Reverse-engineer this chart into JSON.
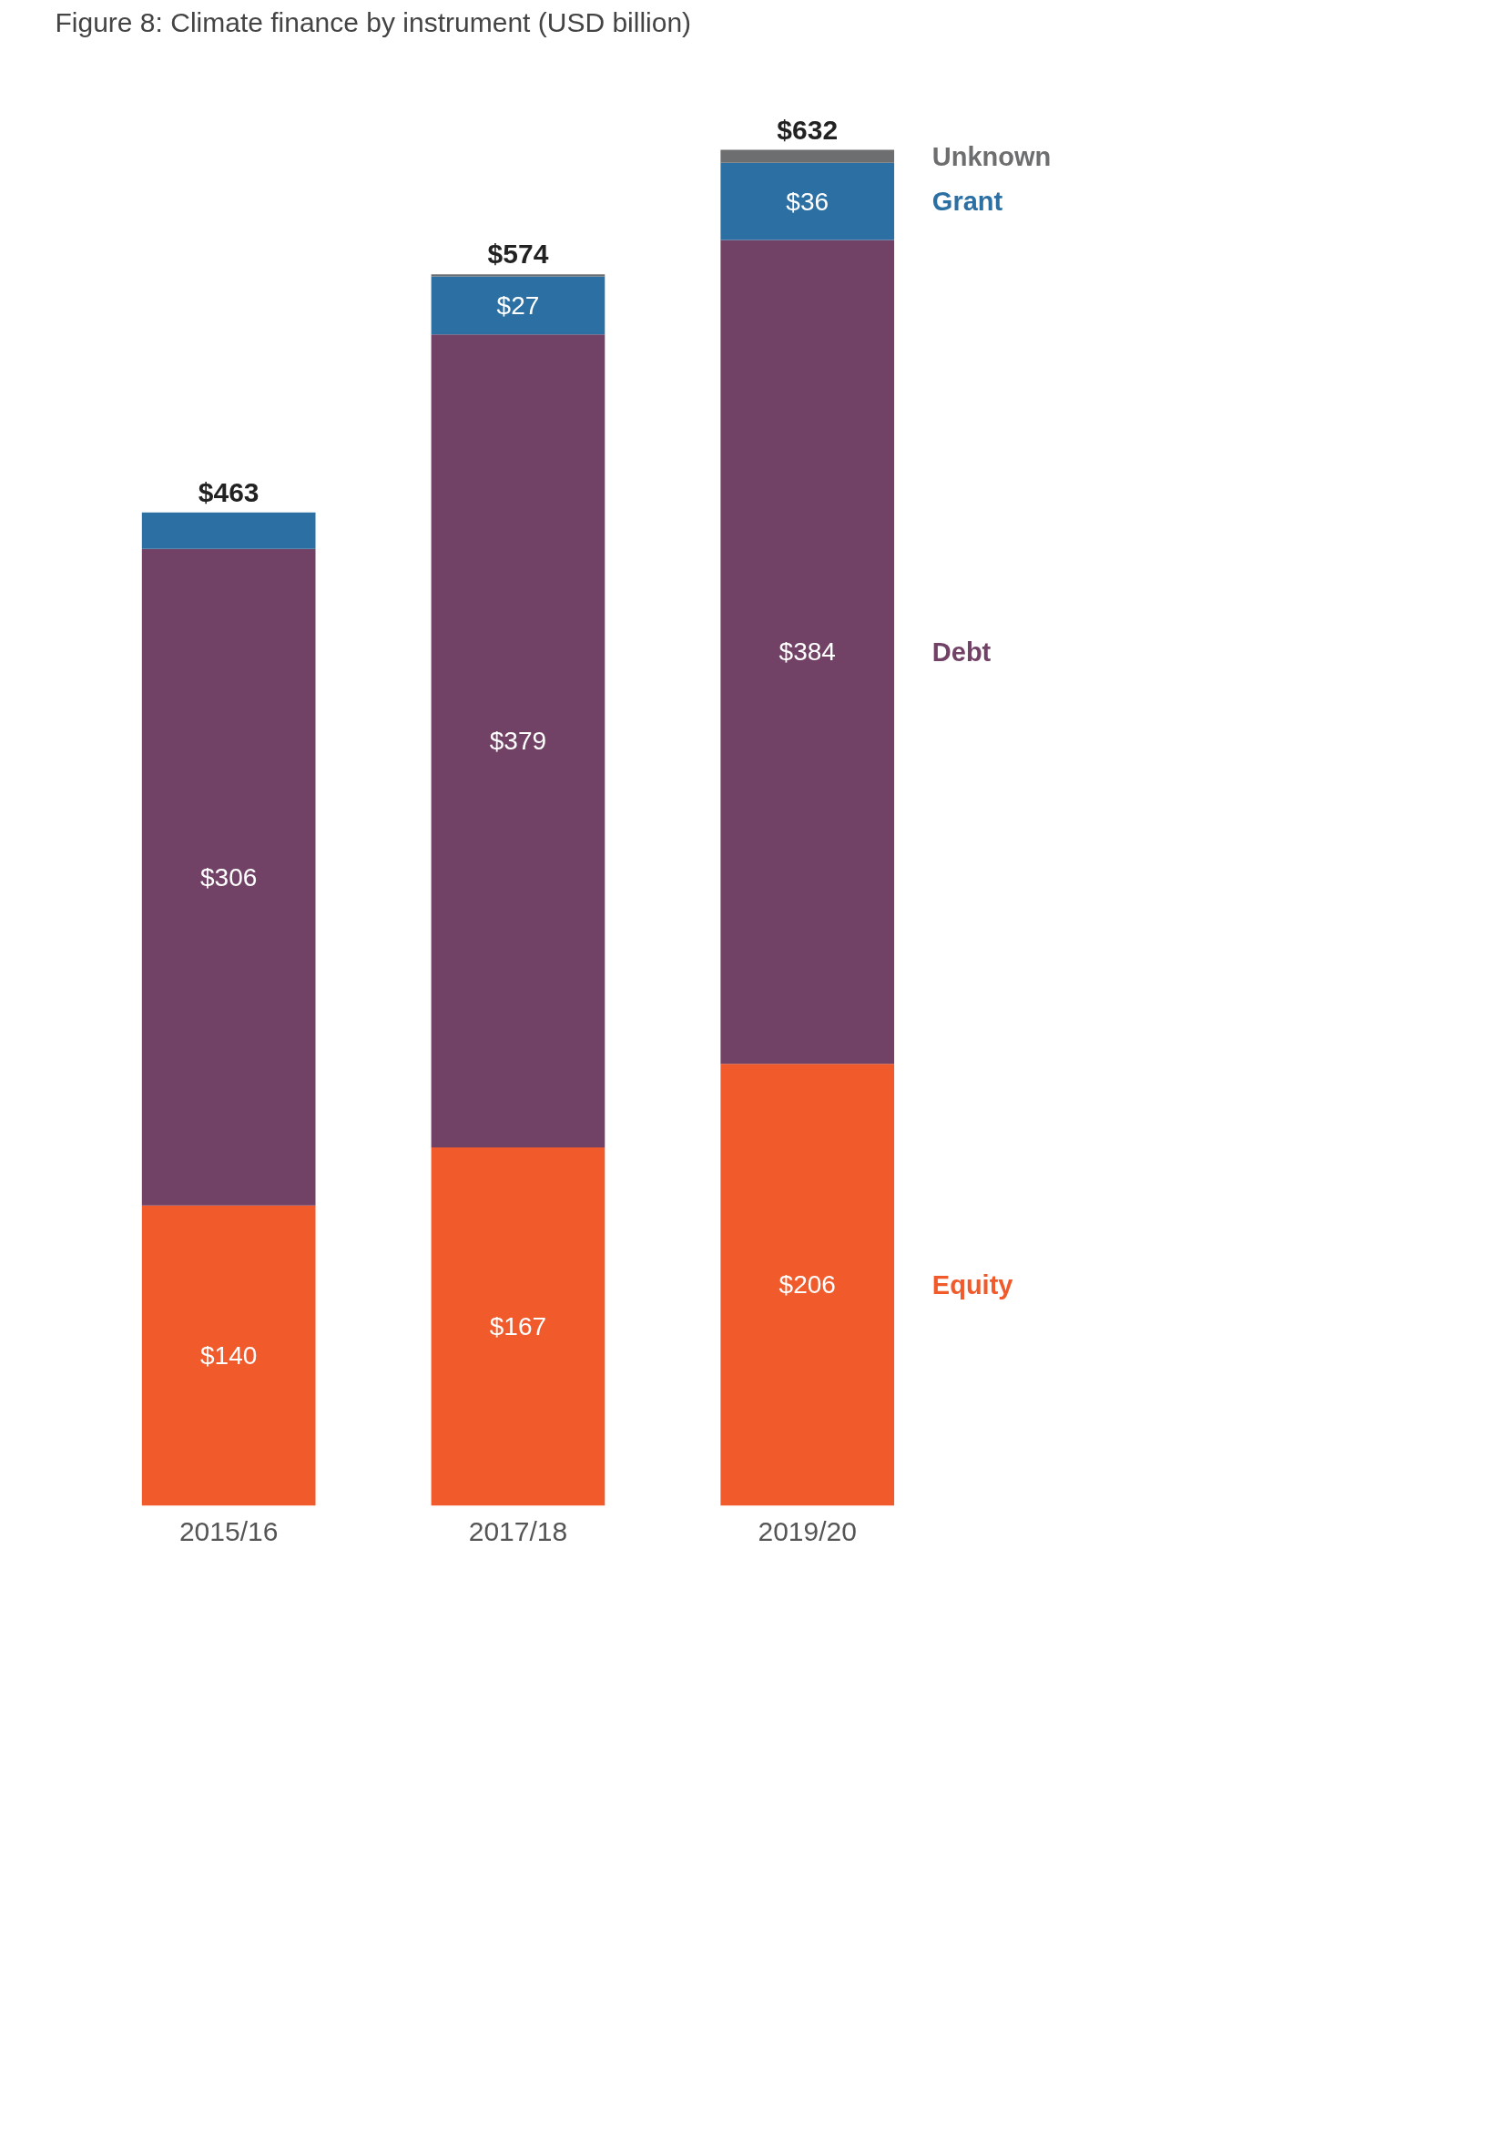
{
  "chart_data": {
    "type": "bar",
    "title": "Figure 8: Climate finance by instrument (USD billion)",
    "categories": [
      "2015/16",
      "2017/18",
      "2019/20"
    ],
    "stacked": true,
    "legend": "right",
    "grid": false,
    "series": [
      {
        "name": "Equity",
        "color": "#f15a2b",
        "values": [
          140,
          167,
          206
        ],
        "value_labels": [
          "$140",
          "$167",
          "$206"
        ]
      },
      {
        "name": "Debt",
        "color": "#714266",
        "values": [
          306,
          379,
          384
        ],
        "value_labels": [
          "$306",
          "$379",
          "$384"
        ]
      },
      {
        "name": "Grant",
        "color": "#2c6fa3",
        "values": [
          17,
          27,
          36
        ],
        "value_labels": [
          null,
          "$27",
          "$36"
        ]
      },
      {
        "name": "Unknown",
        "color": "#6d6e70",
        "values": [
          0,
          1,
          6
        ],
        "value_labels": [
          null,
          null,
          null
        ]
      }
    ],
    "totals": [
      "$463",
      "$574",
      "$632"
    ]
  }
}
